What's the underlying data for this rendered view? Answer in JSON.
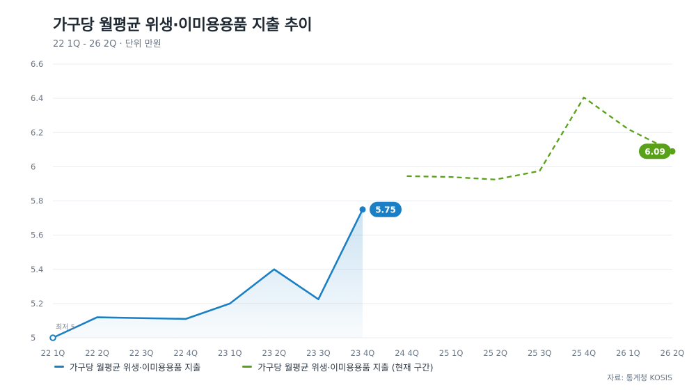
{
  "header": {
    "title": "가구당 월평균 위생·이미용용품 지출 추이",
    "subtitle": "22 1Q - 26 2Q · 단위 만원"
  },
  "source": "자료: 통계청 KOSIS",
  "colors": {
    "series1": "#1a7fc4",
    "series2": "#5aa11a",
    "grid": "#e9edf1",
    "axis_text": "#6b7785"
  },
  "chart_data": {
    "type": "line",
    "x": [
      "22 1Q",
      "22 2Q",
      "22 3Q",
      "22 4Q",
      "23 1Q",
      "23 2Q",
      "23 3Q",
      "23 4Q",
      "24 4Q",
      "25 1Q",
      "25 2Q",
      "25 3Q",
      "25 4Q",
      "26 1Q",
      "26 2Q"
    ],
    "ylim": [
      5,
      6.6
    ],
    "yticks": [
      "5",
      "5.2",
      "5.4",
      "5.6",
      "5.8",
      "6",
      "6.2",
      "6.4",
      "6.6"
    ],
    "grid": true,
    "legend_position": "bottom-left",
    "series": [
      {
        "name": "가구당 월평균 위생·이미용용품 지출",
        "style": "solid-area",
        "x": [
          "22 1Q",
          "22 2Q",
          "22 3Q",
          "22 4Q",
          "23 1Q",
          "23 2Q",
          "23 3Q",
          "23 4Q"
        ],
        "values": [
          5.0,
          5.12,
          5.115,
          5.11,
          5.2,
          5.4,
          5.225,
          5.75
        ]
      },
      {
        "name": "가구당 월평균 위생·이미용용품 지출 (현재 구간)",
        "style": "dashed",
        "x": [
          "24 4Q",
          "25 1Q",
          "25 2Q",
          "25 3Q",
          "25 4Q",
          "26 1Q",
          "26 2Q"
        ],
        "values": [
          5.945,
          5.94,
          5.925,
          5.975,
          6.405,
          6.22,
          6.09
        ]
      }
    ],
    "annotations": {
      "min_label": "최저 5",
      "end_label_1": "5.75",
      "end_label_2": "6.09"
    }
  }
}
